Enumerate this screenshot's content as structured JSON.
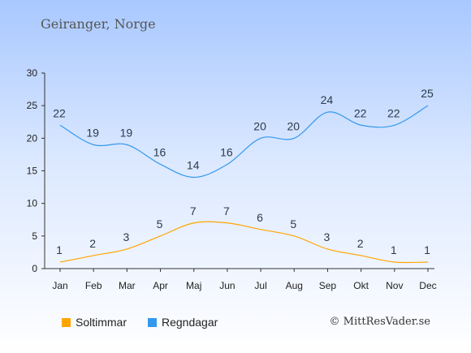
{
  "title": "Geiranger, Norge",
  "credit": "© MittResVader.se",
  "colors": {
    "sun": "#ffa500",
    "rain": "#3399ee"
  },
  "chart_data": {
    "type": "line",
    "categories": [
      "Jan",
      "Feb",
      "Mar",
      "Apr",
      "Maj",
      "Jun",
      "Jul",
      "Aug",
      "Sep",
      "Okt",
      "Nov",
      "Dec"
    ],
    "series": [
      {
        "name": "Soltimmar",
        "values": [
          1,
          2,
          3,
          5,
          7,
          7,
          6,
          5,
          3,
          2,
          1,
          1
        ]
      },
      {
        "name": "Regndagar",
        "values": [
          22,
          19,
          19,
          16,
          14,
          16,
          20,
          20,
          24,
          22,
          22,
          25
        ]
      }
    ],
    "ylim": [
      0,
      30
    ],
    "yticks": [
      0,
      5,
      10,
      15,
      20,
      25,
      30
    ],
    "grid": false,
    "legend": "bottom-left"
  }
}
